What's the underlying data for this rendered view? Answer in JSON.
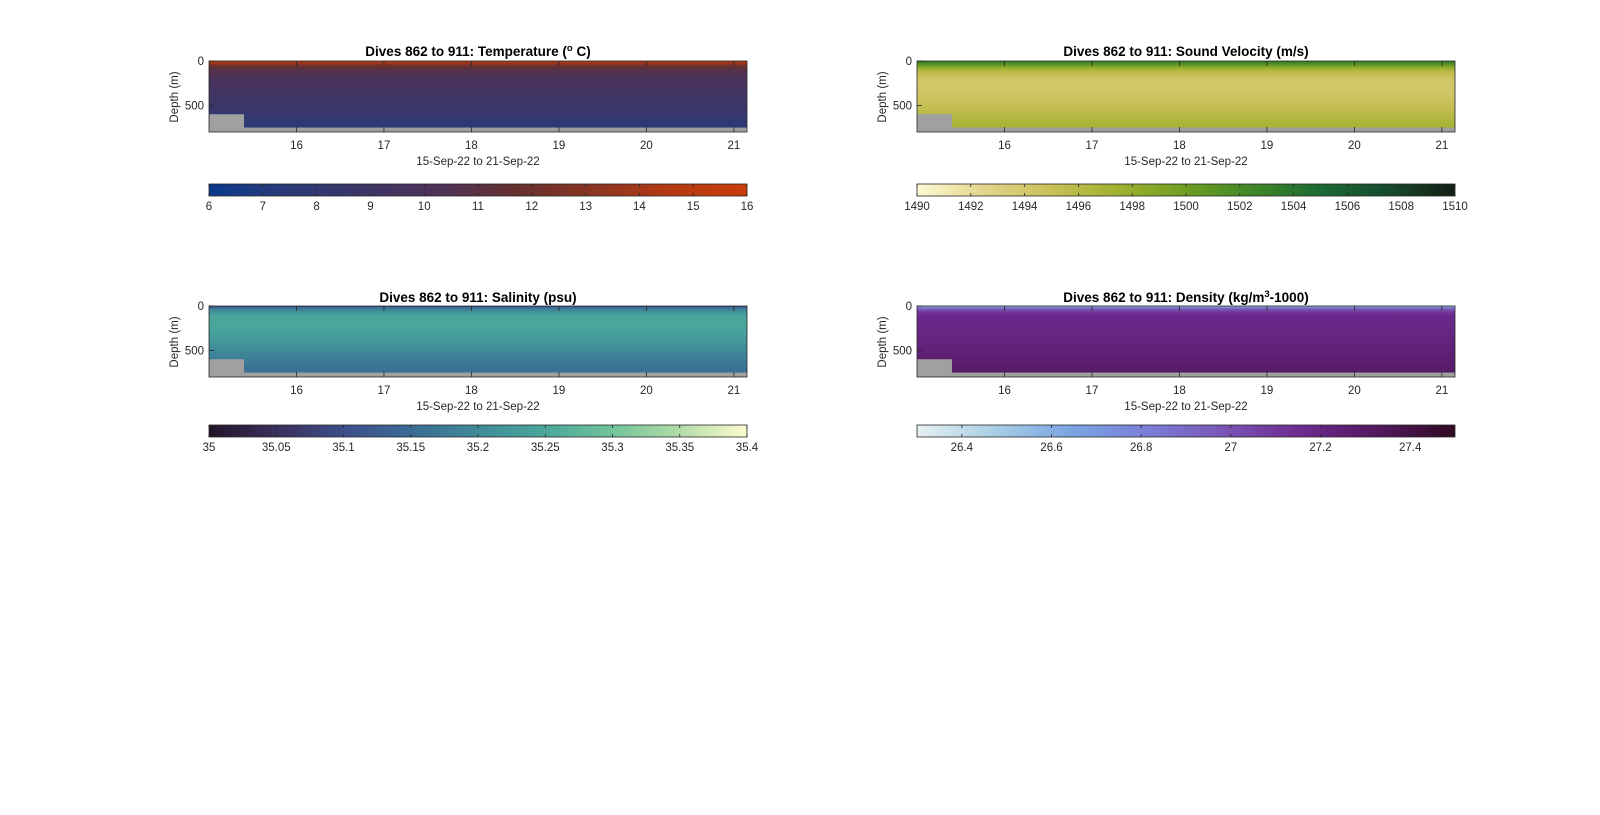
{
  "figure": {
    "background": "#ffffff"
  },
  "chart_data": [
    {
      "type": "heatmap",
      "title_main": "Dives 862 to 911: Temperature (",
      "title_sup": "o",
      "title_tail": " C)",
      "xlabel": "15-Sep-22 to 21-Sep-22",
      "ylabel": "Depth (m)",
      "x_range": [
        15.0,
        21.15
      ],
      "y_range": [
        0,
        800
      ],
      "y_reversed": true,
      "x_ticks": [
        "16",
        "17",
        "18",
        "19",
        "20",
        "21"
      ],
      "x_tick_values": [
        16,
        17,
        18,
        19,
        20,
        21
      ],
      "y_ticks": [
        "0",
        "500"
      ],
      "y_tick_values": [
        0,
        500
      ],
      "colorbar": {
        "ticks": [
          "6",
          "7",
          "8",
          "9",
          "10",
          "11",
          "12",
          "13",
          "14",
          "15",
          "16"
        ],
        "tick_values": [
          6,
          7,
          8,
          9,
          10,
          11,
          12,
          13,
          14,
          15,
          16
        ],
        "range": [
          6,
          16
        ],
        "colormap": [
          "#0a3a8c",
          "#2a3a78",
          "#3c3566",
          "#4e3257",
          "#65302f",
          "#8a3522",
          "#b53a12",
          "#c93d0a"
        ]
      },
      "profile_depth_values": [
        0,
        50,
        100,
        200,
        300,
        400,
        500,
        600,
        700,
        800
      ],
      "profile_values": [
        15.5,
        12.0,
        10.8,
        10.0,
        9.6,
        9.2,
        8.8,
        8.3,
        7.8,
        7.5
      ],
      "bottom_mask_depth_m": 750,
      "no_data_color": "#a0a0a0"
    },
    {
      "type": "heatmap",
      "title_main": "Dives 862 to 911: Sound Velocity (m/s)",
      "title_sup": "",
      "title_tail": "",
      "xlabel": "15-Sep-22 to 21-Sep-22",
      "ylabel": "Depth (m)",
      "x_range": [
        15.0,
        21.15
      ],
      "y_range": [
        0,
        800
      ],
      "y_reversed": true,
      "x_ticks": [
        "16",
        "17",
        "18",
        "19",
        "20",
        "21"
      ],
      "x_tick_values": [
        16,
        17,
        18,
        19,
        20,
        21
      ],
      "y_ticks": [
        "0",
        "500"
      ],
      "y_tick_values": [
        0,
        500
      ],
      "colorbar": {
        "ticks": [
          "1490",
          "1492",
          "1494",
          "1496",
          "1498",
          "1500",
          "1502",
          "1504",
          "1506",
          "1508",
          "1510"
        ],
        "tick_values": [
          1490,
          1492,
          1494,
          1496,
          1498,
          1500,
          1502,
          1504,
          1506,
          1508,
          1510
        ],
        "range": [
          1490,
          1510
        ],
        "colormap": [
          "#fdfbd4",
          "#e3d48c",
          "#c9c057",
          "#9fb12e",
          "#6e9e22",
          "#3f8628",
          "#1d6a34",
          "#164a2e",
          "#141e14"
        ]
      },
      "profile_depth_values": [
        0,
        30,
        80,
        150,
        250,
        350,
        450,
        550,
        650,
        800
      ],
      "profile_values": [
        1503.5,
        1502.0,
        1497.5,
        1495.0,
        1494.0,
        1494.3,
        1494.8,
        1495.5,
        1496.5,
        1497.5
      ],
      "bottom_mask_depth_m": 750,
      "no_data_color": "#a0a0a0"
    },
    {
      "type": "heatmap",
      "title_main": "Dives 862 to 911: Salinity (psu)",
      "title_sup": "",
      "title_tail": "",
      "xlabel": "15-Sep-22 to 21-Sep-22",
      "ylabel": "Depth (m)",
      "x_range": [
        15.0,
        21.15
      ],
      "y_range": [
        0,
        800
      ],
      "y_reversed": true,
      "x_ticks": [
        "16",
        "17",
        "18",
        "19",
        "20",
        "21"
      ],
      "x_tick_values": [
        16,
        17,
        18,
        19,
        20,
        21
      ],
      "y_ticks": [
        "0",
        "500"
      ],
      "y_tick_values": [
        0,
        500
      ],
      "colorbar": {
        "ticks": [
          "35",
          "35.05",
          "35.1",
          "35.15",
          "35.2",
          "35.25",
          "35.3",
          "35.35",
          "35.4"
        ],
        "tick_values": [
          35,
          35.05,
          35.1,
          35.15,
          35.2,
          35.25,
          35.3,
          35.35,
          35.4
        ],
        "range": [
          35,
          35.4
        ],
        "colormap": [
          "#231528",
          "#3a2f5c",
          "#3d4e8a",
          "#3b6b95",
          "#3f8b99",
          "#4aa79a",
          "#72c39a",
          "#b2dca8",
          "#fdfcd0"
        ]
      },
      "profile_depth_values": [
        0,
        30,
        100,
        200,
        300,
        400,
        500,
        600,
        700,
        800
      ],
      "profile_values": [
        35.1,
        35.18,
        35.24,
        35.25,
        35.24,
        35.22,
        35.2,
        35.18,
        35.16,
        35.15
      ],
      "bottom_mask_depth_m": 750,
      "no_data_color": "#a0a0a0"
    },
    {
      "type": "heatmap",
      "title_main": "Dives 862 to 911: Density (kg/m",
      "title_sup": "3",
      "title_tail": "-1000)",
      "xlabel": "15-Sep-22 to 21-Sep-22",
      "ylabel": "Depth (m)",
      "x_range": [
        15.0,
        21.15
      ],
      "y_range": [
        0,
        800
      ],
      "y_reversed": true,
      "x_ticks": [
        "16",
        "17",
        "18",
        "19",
        "20",
        "21"
      ],
      "x_tick_values": [
        16,
        17,
        18,
        19,
        20,
        21
      ],
      "y_ticks": [
        "0",
        "500"
      ],
      "y_tick_values": [
        0,
        500
      ],
      "colorbar": {
        "ticks": [
          "26.4",
          "26.6",
          "26.8",
          "27",
          "27.2",
          "27.4"
        ],
        "tick_values": [
          26.4,
          26.6,
          26.8,
          27,
          27.2,
          27.4
        ],
        "range": [
          26.3,
          27.5
        ],
        "colormap": [
          "#e6f0f0",
          "#a9cfe6",
          "#7aa5e2",
          "#7a7ed8",
          "#7a55b5",
          "#6e2a8f",
          "#52185f",
          "#300a22"
        ]
      },
      "profile_depth_values": [
        0,
        30,
        80,
        150,
        300,
        500,
        650,
        800
      ],
      "profile_values": [
        26.6,
        26.95,
        27.15,
        27.18,
        27.2,
        27.24,
        27.28,
        27.32
      ],
      "bottom_mask_depth_m": 750,
      "no_data_color": "#a0a0a0"
    }
  ]
}
